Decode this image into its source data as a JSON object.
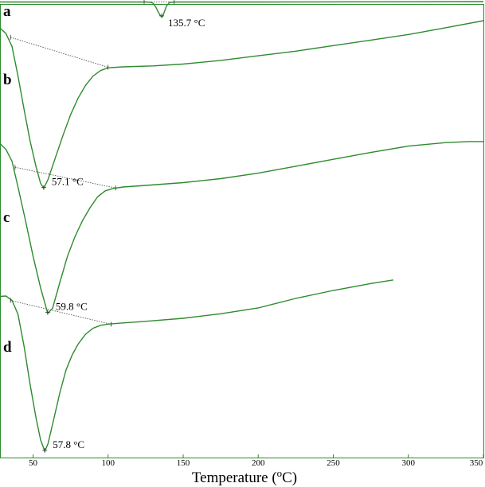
{
  "chart_data": {
    "type": "line",
    "title": "",
    "xlabel": "Temperature",
    "xlabel_unit_open": " (",
    "xlabel_unit_sup": "o",
    "xlabel_unit_close": "C)",
    "xlim": [
      28,
      350
    ],
    "xticks": [
      "50",
      "100",
      "150",
      "200",
      "250",
      "300",
      "350"
    ],
    "ylabel": "",
    "grid": false,
    "line_color": "#2e8b2e",
    "baseline_color": "#555555",
    "series": [
      {
        "panel": "a",
        "peak_temp": "135.7",
        "peak_label_unit": " °C",
        "points": [
          [
            28,
            0.994
          ],
          [
            110,
            0.993
          ],
          [
            125,
            0.993
          ],
          [
            128,
            0.99
          ],
          [
            130,
            0.972
          ],
          [
            132,
            0.9
          ],
          [
            133.5,
            0.82
          ],
          [
            135.0,
            0.76
          ],
          [
            135.7,
            0.748
          ],
          [
            136.3,
            0.752
          ],
          [
            137.5,
            0.83
          ],
          [
            139,
            0.93
          ],
          [
            141,
            0.985
          ],
          [
            145,
            0.993
          ],
          [
            200,
            0.994
          ],
          [
            300,
            0.998
          ],
          [
            350,
            1.0
          ]
        ],
        "baseline": [
          [
            124,
            0.996
          ],
          [
            144,
            0.996
          ]
        ]
      },
      {
        "panel": "b",
        "peak_temp": "57.1",
        "peak_label_unit": " °C",
        "points": [
          [
            28,
            0.96
          ],
          [
            32,
            0.93
          ],
          [
            36,
            0.86
          ],
          [
            40,
            0.7
          ],
          [
            44,
            0.52
          ],
          [
            48,
            0.35
          ],
          [
            52,
            0.21
          ],
          [
            55,
            0.12
          ],
          [
            57.1,
            0.092
          ],
          [
            60,
            0.14
          ],
          [
            65,
            0.26
          ],
          [
            70,
            0.38
          ],
          [
            75,
            0.49
          ],
          [
            80,
            0.58
          ],
          [
            85,
            0.65
          ],
          [
            90,
            0.7
          ],
          [
            95,
            0.73
          ],
          [
            100,
            0.745
          ],
          [
            110,
            0.75
          ],
          [
            130,
            0.755
          ],
          [
            150,
            0.765
          ],
          [
            175,
            0.785
          ],
          [
            200,
            0.81
          ],
          [
            225,
            0.835
          ],
          [
            250,
            0.865
          ],
          [
            275,
            0.895
          ],
          [
            300,
            0.925
          ],
          [
            325,
            0.962
          ],
          [
            350,
            1.0
          ]
        ],
        "baseline": [
          [
            35,
            0.91
          ],
          [
            100,
            0.748
          ]
        ]
      },
      {
        "panel": "c",
        "peak_temp": "59.8",
        "peak_label_unit": " °C",
        "points": [
          [
            28,
            0.95
          ],
          [
            32,
            0.92
          ],
          [
            36,
            0.86
          ],
          [
            40,
            0.73
          ],
          [
            45,
            0.56
          ],
          [
            50,
            0.38
          ],
          [
            55,
            0.22
          ],
          [
            59.8,
            0.09
          ],
          [
            63,
            0.115
          ],
          [
            68,
            0.25
          ],
          [
            73,
            0.38
          ],
          [
            78,
            0.48
          ],
          [
            83,
            0.56
          ],
          [
            88,
            0.625
          ],
          [
            93,
            0.68
          ],
          [
            98,
            0.71
          ],
          [
            103,
            0.722
          ],
          [
            110,
            0.73
          ],
          [
            125,
            0.738
          ],
          [
            150,
            0.752
          ],
          [
            175,
            0.772
          ],
          [
            200,
            0.8
          ],
          [
            225,
            0.835
          ],
          [
            250,
            0.87
          ],
          [
            275,
            0.905
          ],
          [
            300,
            0.937
          ],
          [
            325,
            0.955
          ],
          [
            340,
            0.96
          ],
          [
            350,
            0.96
          ]
        ],
        "baseline": [
          [
            38,
            0.83
          ],
          [
            105,
            0.725
          ]
        ]
      },
      {
        "panel": "d",
        "peak_temp": "57.8",
        "peak_label_unit": " °C",
        "points": [
          [
            28,
            0.87
          ],
          [
            32,
            0.872
          ],
          [
            36,
            0.85
          ],
          [
            40,
            0.78
          ],
          [
            44,
            0.62
          ],
          [
            48,
            0.43
          ],
          [
            52,
            0.26
          ],
          [
            55,
            0.15
          ],
          [
            57.8,
            0.092
          ],
          [
            60,
            0.13
          ],
          [
            64,
            0.26
          ],
          [
            68,
            0.39
          ],
          [
            72,
            0.5
          ],
          [
            76,
            0.575
          ],
          [
            80,
            0.63
          ],
          [
            85,
            0.68
          ],
          [
            90,
            0.71
          ],
          [
            95,
            0.725
          ],
          [
            100,
            0.731
          ],
          [
            110,
            0.737
          ],
          [
            125,
            0.745
          ],
          [
            150,
            0.76
          ],
          [
            175,
            0.783
          ],
          [
            200,
            0.812
          ],
          [
            225,
            0.86
          ],
          [
            250,
            0.9
          ],
          [
            275,
            0.935
          ],
          [
            290,
            0.953
          ]
        ],
        "baseline": [
          [
            35,
            0.85
          ],
          [
            102,
            0.73
          ]
        ]
      }
    ]
  }
}
